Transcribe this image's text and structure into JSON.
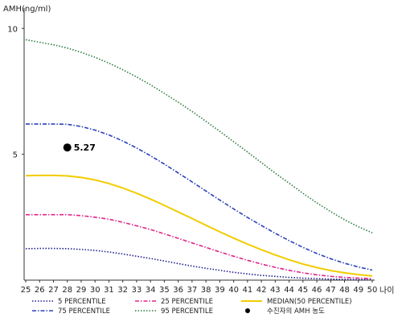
{
  "chart_data": {
    "type": "line",
    "title": "",
    "ylabel": "AMH(ng/ml)",
    "xlabel": "나이",
    "x": [
      25,
      26,
      27,
      28,
      29,
      30,
      31,
      32,
      33,
      34,
      35,
      36,
      37,
      38,
      39,
      40,
      41,
      42,
      43,
      44,
      45,
      46,
      47,
      48,
      49,
      50
    ],
    "x_tick_labels": [
      "25",
      "26",
      "27",
      "28",
      "29",
      "30",
      "31",
      "32",
      "33",
      "34",
      "35",
      "36",
      "37",
      "38",
      "39",
      "40",
      "41",
      "42",
      "43",
      "44",
      "45",
      "46",
      "47",
      "48",
      "49",
      "50"
    ],
    "y_tick_values": [
      5,
      10
    ],
    "y_tick_labels": [
      "5",
      "10"
    ],
    "xlim": [
      25,
      50
    ],
    "ylim": [
      0,
      11
    ],
    "grid": false,
    "legend_position": "bottom",
    "series": [
      {
        "name": "5 PERCENTILE",
        "color": "#1f1f8f",
        "style": "dotted",
        "values": [
          1.25,
          1.26,
          1.26,
          1.25,
          1.22,
          1.18,
          1.12,
          1.04,
          0.95,
          0.86,
          0.76,
          0.66,
          0.56,
          0.47,
          0.39,
          0.31,
          0.25,
          0.19,
          0.15,
          0.11,
          0.08,
          0.06,
          0.04,
          0.03,
          0.02,
          0.02
        ]
      },
      {
        "name": "25 PERCENTILE",
        "color": "#e0248a",
        "style": "dashdot",
        "values": [
          2.6,
          2.6,
          2.6,
          2.6,
          2.56,
          2.5,
          2.42,
          2.3,
          2.16,
          2.01,
          1.84,
          1.66,
          1.48,
          1.3,
          1.12,
          0.95,
          0.79,
          0.64,
          0.51,
          0.39,
          0.29,
          0.21,
          0.15,
          0.11,
          0.08,
          0.06
        ]
      },
      {
        "name": "MEDIAN(50 PERCENTILE)",
        "color": "#f2cc00",
        "style": "solid",
        "values": [
          4.15,
          4.16,
          4.16,
          4.14,
          4.08,
          3.98,
          3.84,
          3.66,
          3.45,
          3.22,
          2.97,
          2.71,
          2.45,
          2.18,
          1.92,
          1.67,
          1.43,
          1.21,
          1.0,
          0.81,
          0.64,
          0.5,
          0.38,
          0.29,
          0.22,
          0.17
        ]
      },
      {
        "name": "75 PERCENTILE",
        "color": "#2a40b8",
        "style": "dashdot",
        "values": [
          6.2,
          6.2,
          6.2,
          6.19,
          6.1,
          5.96,
          5.77,
          5.53,
          5.25,
          4.94,
          4.61,
          4.26,
          3.9,
          3.54,
          3.18,
          2.83,
          2.49,
          2.17,
          1.86,
          1.57,
          1.3,
          1.06,
          0.85,
          0.67,
          0.52,
          0.4
        ]
      },
      {
        "name": "95 PERCENTILE",
        "color": "#2e7d3e",
        "style": "dotted",
        "values": [
          9.55,
          9.45,
          9.35,
          9.22,
          9.05,
          8.85,
          8.62,
          8.36,
          8.07,
          7.76,
          7.42,
          7.07,
          6.7,
          6.31,
          5.91,
          5.5,
          5.09,
          4.67,
          4.25,
          3.85,
          3.45,
          3.07,
          2.72,
          2.4,
          2.12,
          1.88
        ]
      }
    ],
    "marker": {
      "name": "수진자의 AMH 농도",
      "x": 28,
      "y": 5.27,
      "label": "5.27",
      "color": "#000000"
    },
    "legend": [
      {
        "label": "5 PERCENTILE",
        "color": "#1f1f8f",
        "style": "dotted"
      },
      {
        "label": "25 PERCENTILE",
        "color": "#e0248a",
        "style": "dashdot"
      },
      {
        "label": "MEDIAN(50 PERCENTILE)",
        "color": "#f2cc00",
        "style": "solid"
      },
      {
        "label": "75 PERCENTILE",
        "color": "#2a40b8",
        "style": "dashdot"
      },
      {
        "label": "95 PERCENTILE",
        "color": "#2e7d3e",
        "style": "dotted"
      },
      {
        "label": "수진자의 AMH 농도",
        "color": "#000000",
        "style": "marker"
      }
    ]
  }
}
